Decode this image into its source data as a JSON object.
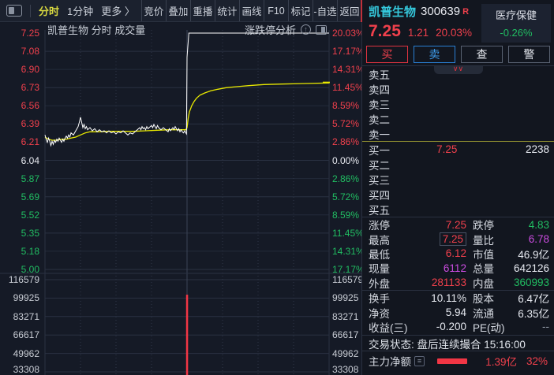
{
  "toolbar": {
    "mode": "分时",
    "interval": "1分钟",
    "more": "更多 〉",
    "buttons": [
      "竞价",
      "叠加",
      "重播",
      "统计",
      "画线",
      "F10",
      "标记",
      "-自选",
      "返回"
    ]
  },
  "chart_head": {
    "title": "凯普生物  分时 成交量",
    "analysis": "涨跌停分析"
  },
  "stock": {
    "name": "凯普生物",
    "code": "300639",
    "flag": "R",
    "industry": "医疗保健",
    "industry_change": "-0.26%",
    "price": "7.25",
    "change": "1.21",
    "change_pct": "20.03%"
  },
  "trade_buttons": {
    "buy": "买",
    "sell": "卖",
    "query": "查",
    "alert": "警"
  },
  "order_book": {
    "sells": [
      {
        "label": "卖五",
        "price": "",
        "vol": ""
      },
      {
        "label": "卖四",
        "price": "",
        "vol": ""
      },
      {
        "label": "卖三",
        "price": "",
        "vol": ""
      },
      {
        "label": "卖二",
        "price": "",
        "vol": ""
      },
      {
        "label": "卖一",
        "price": "",
        "vol": ""
      }
    ],
    "buys": [
      {
        "label": "买一",
        "price": "7.25",
        "vol": "2238"
      },
      {
        "label": "买二",
        "price": "",
        "vol": ""
      },
      {
        "label": "买三",
        "price": "",
        "vol": ""
      },
      {
        "label": "买四",
        "price": "",
        "vol": ""
      },
      {
        "label": "买五",
        "price": "",
        "vol": ""
      }
    ]
  },
  "stats": [
    {
      "l1": "涨停",
      "v1": "7.25",
      "c1": "up",
      "l2": "跌停",
      "v2": "4.83",
      "c2": "down",
      "sep_before": true
    },
    {
      "l1": "最高",
      "v1": "7.25",
      "c1": "up",
      "l2": "量比",
      "v2": "6.78",
      "c2": "purple",
      "boxed1": true
    },
    {
      "l1": "最低",
      "v1": "6.12",
      "c1": "up",
      "l2": "市值",
      "v2": "46.9亿",
      "c2": "white"
    },
    {
      "l1": "现量",
      "v1": "6112",
      "c1": "purple",
      "l2": "总量",
      "v2": "642126",
      "c2": "white"
    },
    {
      "l1": "外盘",
      "v1": "281133",
      "c1": "up",
      "l2": "内盘",
      "v2": "360993",
      "c2": "down"
    },
    {
      "l1": "换手",
      "v1": "10.11%",
      "c1": "white",
      "l2": "股本",
      "v2": "6.47亿",
      "c2": "white",
      "sep_before": true
    },
    {
      "l1": "净资",
      "v1": "5.94",
      "c1": "white",
      "l2": "流通",
      "v2": "6.35亿",
      "c2": "white"
    },
    {
      "l1": "收益(三)",
      "v1": "-0.200",
      "c1": "white",
      "l2": "PE(动)",
      "v2": "--",
      "c2": "dim"
    }
  ],
  "status": {
    "label": "交易状态:",
    "value": "盘后连续撮合 15:16:00"
  },
  "main_force": {
    "label": "主力净额",
    "value": "1.39亿",
    "pct": "32%"
  },
  "chart_data": {
    "type": "line",
    "title": "凯普生物 分时 成交量",
    "prev_close": 6.04,
    "limit_up": 7.25,
    "limit_down": 4.83,
    "left_axis": [
      {
        "t": "7.25",
        "c": "up"
      },
      {
        "t": "7.08",
        "c": "up"
      },
      {
        "t": "6.90",
        "c": "up"
      },
      {
        "t": "6.73",
        "c": "up"
      },
      {
        "t": "6.56",
        "c": "up"
      },
      {
        "t": "6.39",
        "c": "up"
      },
      {
        "t": "6.21",
        "c": "up"
      },
      {
        "t": "6.04",
        "c": "flat"
      },
      {
        "t": "5.87",
        "c": "down"
      },
      {
        "t": "5.69",
        "c": "down"
      },
      {
        "t": "5.52",
        "c": "down"
      },
      {
        "t": "5.35",
        "c": "down"
      },
      {
        "t": "5.18",
        "c": "down"
      },
      {
        "t": "5.00",
        "c": "down"
      }
    ],
    "right_axis": [
      {
        "t": "20.03%",
        "c": "up"
      },
      {
        "t": "17.17%",
        "c": "up"
      },
      {
        "t": "14.31%",
        "c": "up"
      },
      {
        "t": "11.45%",
        "c": "up"
      },
      {
        "t": "8.59%",
        "c": "up"
      },
      {
        "t": "5.72%",
        "c": "up"
      },
      {
        "t": "2.86%",
        "c": "up"
      },
      {
        "t": "0.00%",
        "c": "flat"
      },
      {
        "t": "2.86%",
        "c": "down"
      },
      {
        "t": "5.72%",
        "c": "down"
      },
      {
        "t": "8.59%",
        "c": "down"
      },
      {
        "t": "11.45%",
        "c": "down"
      },
      {
        "t": "14.31%",
        "c": "down"
      },
      {
        "t": "17.17%",
        "c": "down"
      }
    ],
    "vol_axis": [
      "116579",
      "99925",
      "83271",
      "66617",
      "49962",
      "33308"
    ],
    "series": [
      {
        "name": "price",
        "color": "#ffffff",
        "points": [
          [
            0,
            6.28
          ],
          [
            1,
            6.24
          ],
          [
            2,
            6.21
          ],
          [
            3,
            6.25
          ],
          [
            4,
            6.22
          ],
          [
            5,
            6.18
          ],
          [
            6,
            6.22
          ],
          [
            7,
            6.19
          ],
          [
            8,
            6.23
          ],
          [
            9,
            6.21
          ],
          [
            10,
            6.24
          ],
          [
            11,
            6.22
          ],
          [
            12,
            6.25
          ],
          [
            13,
            6.23
          ],
          [
            14,
            6.21
          ],
          [
            15,
            6.24
          ],
          [
            16,
            6.22
          ],
          [
            17,
            6.25
          ],
          [
            18,
            6.27
          ],
          [
            19,
            6.25
          ],
          [
            20,
            6.28
          ],
          [
            21,
            6.26
          ],
          [
            22,
            6.3
          ],
          [
            24,
            6.28
          ],
          [
            26,
            6.32
          ],
          [
            28,
            6.36
          ],
          [
            29,
            6.4
          ],
          [
            30,
            6.45
          ],
          [
            31,
            6.4
          ],
          [
            32,
            6.35
          ],
          [
            33,
            6.38
          ],
          [
            34,
            6.34
          ],
          [
            35,
            6.36
          ],
          [
            36,
            6.33
          ],
          [
            38,
            6.35
          ],
          [
            40,
            6.32
          ],
          [
            42,
            6.34
          ],
          [
            44,
            6.31
          ],
          [
            46,
            6.33
          ],
          [
            48,
            6.31
          ],
          [
            50,
            6.32
          ],
          [
            52,
            6.3
          ],
          [
            54,
            6.32
          ],
          [
            56,
            6.3
          ],
          [
            58,
            6.31
          ],
          [
            60,
            6.29
          ],
          [
            62,
            6.31
          ],
          [
            64,
            6.3
          ],
          [
            66,
            6.32
          ],
          [
            68,
            6.3
          ],
          [
            70,
            6.28
          ],
          [
            72,
            6.3
          ],
          [
            74,
            6.29
          ],
          [
            76,
            6.31
          ],
          [
            78,
            6.33
          ],
          [
            80,
            6.35
          ],
          [
            81,
            6.33
          ],
          [
            82,
            6.36
          ],
          [
            83,
            6.34
          ],
          [
            84,
            6.35
          ],
          [
            85,
            6.33
          ],
          [
            86,
            6.36
          ],
          [
            87,
            6.34
          ],
          [
            88,
            6.35
          ],
          [
            90,
            6.37
          ],
          [
            91,
            6.35
          ],
          [
            92,
            6.38
          ],
          [
            93,
            6.36
          ],
          [
            94,
            6.34
          ],
          [
            95,
            6.37
          ],
          [
            96,
            6.35
          ],
          [
            98,
            6.33
          ],
          [
            100,
            6.35
          ],
          [
            102,
            6.33
          ],
          [
            104,
            6.31
          ],
          [
            105,
            6.34
          ],
          [
            106,
            6.32
          ],
          [
            108,
            6.35
          ],
          [
            109,
            6.33
          ],
          [
            110,
            6.36
          ],
          [
            111,
            6.34
          ],
          [
            112,
            6.32
          ],
          [
            113,
            6.34
          ],
          [
            114,
            6.31
          ],
          [
            115,
            6.33
          ],
          [
            116,
            6.31
          ],
          [
            117,
            6.3
          ],
          [
            118,
            6.32
          ],
          [
            119,
            6.3
          ],
          [
            119.5,
            6.29
          ],
          [
            120,
            7.02
          ],
          [
            121.5,
            7.25
          ],
          [
            240,
            7.25
          ]
        ]
      },
      {
        "name": "average",
        "color": "#e8e800",
        "points": [
          [
            0,
            6.26
          ],
          [
            3,
            6.24
          ],
          [
            6,
            6.23
          ],
          [
            10,
            6.23
          ],
          [
            14,
            6.24
          ],
          [
            18,
            6.24
          ],
          [
            22,
            6.25
          ],
          [
            26,
            6.26
          ],
          [
            30,
            6.28
          ],
          [
            34,
            6.3
          ],
          [
            38,
            6.31
          ],
          [
            45,
            6.31
          ],
          [
            55,
            6.315
          ],
          [
            65,
            6.315
          ],
          [
            75,
            6.315
          ],
          [
            85,
            6.32
          ],
          [
            95,
            6.325
          ],
          [
            105,
            6.33
          ],
          [
            115,
            6.33
          ],
          [
            119,
            6.33
          ],
          [
            120,
            6.35
          ],
          [
            121,
            6.44
          ],
          [
            122,
            6.5
          ],
          [
            124,
            6.56
          ],
          [
            126,
            6.6
          ],
          [
            128,
            6.63
          ],
          [
            131,
            6.66
          ],
          [
            135,
            6.68
          ],
          [
            140,
            6.7
          ],
          [
            146,
            6.715
          ],
          [
            153,
            6.73
          ],
          [
            162,
            6.74
          ],
          [
            172,
            6.75
          ],
          [
            185,
            6.76
          ],
          [
            200,
            6.765
          ],
          [
            220,
            6.77
          ],
          [
            240,
            6.775
          ]
        ]
      }
    ],
    "volume_bars": [
      {
        "minute": 120,
        "value": 103000,
        "color": "#f23645"
      }
    ],
    "avg_axis_marker_price": 6.78,
    "x_minutes": 240,
    "grid": true
  }
}
